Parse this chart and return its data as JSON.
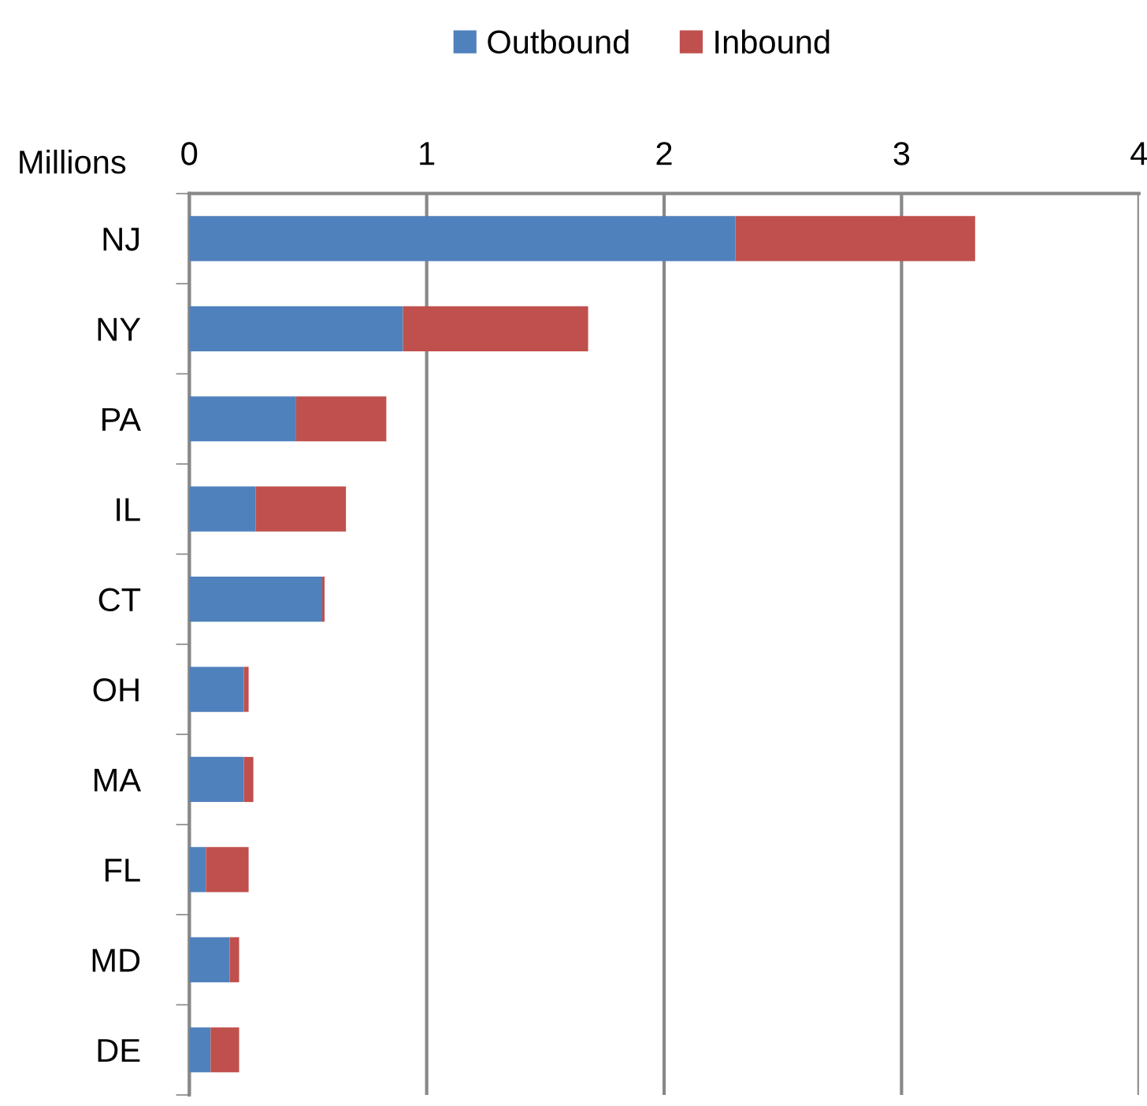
{
  "chart_data": {
    "type": "bar",
    "orientation": "horizontal",
    "stacked": true,
    "xlabel": "Millions",
    "categories": [
      "NJ",
      "NY",
      "PA",
      "IL",
      "CT",
      "OH",
      "MA",
      "FL",
      "MD",
      "DE"
    ],
    "series": [
      {
        "name": "Outbound",
        "color": "#4f81bd",
        "values": [
          2.3,
          0.9,
          0.45,
          0.28,
          0.56,
          0.23,
          0.23,
          0.07,
          0.17,
          0.09
        ]
      },
      {
        "name": "Inbound",
        "color": "#c0504d",
        "values": [
          1.01,
          0.78,
          0.38,
          0.38,
          0.01,
          0.02,
          0.04,
          0.18,
          0.04,
          0.12
        ]
      }
    ],
    "xlim": [
      0,
      4
    ],
    "xticks": [
      0,
      1,
      2,
      3,
      4
    ],
    "grid": "x",
    "legend": "top"
  }
}
